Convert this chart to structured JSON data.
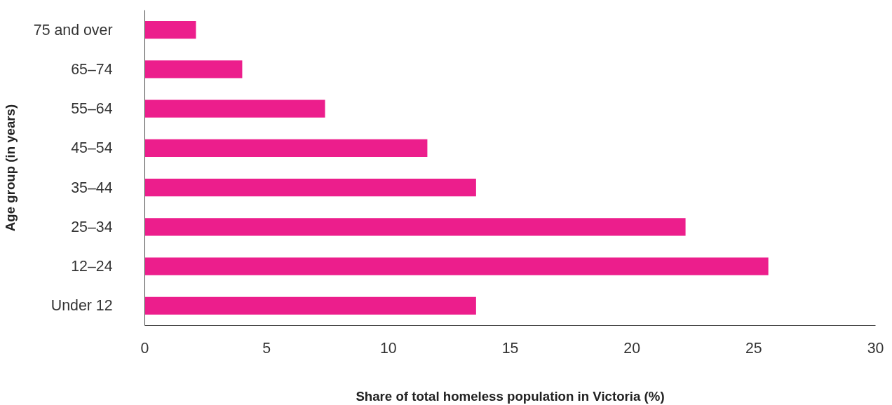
{
  "chart_data": {
    "type": "bar",
    "orientation": "horizontal",
    "xlabel": "Share of total homeless population in Victoria (%)",
    "ylabel": "Age group (in years)",
    "categories": [
      "75 and over",
      "65–74",
      "55–64",
      "45–54",
      "35–44",
      "25–34",
      "12–24",
      "Under 12"
    ],
    "values": [
      2.1,
      4.0,
      7.4,
      11.6,
      13.6,
      22.2,
      25.6,
      13.6
    ],
    "color": "#ec1e8c",
    "xlim": [
      0,
      30
    ],
    "xticks": [
      0,
      5,
      10,
      15,
      20,
      25,
      30
    ]
  }
}
